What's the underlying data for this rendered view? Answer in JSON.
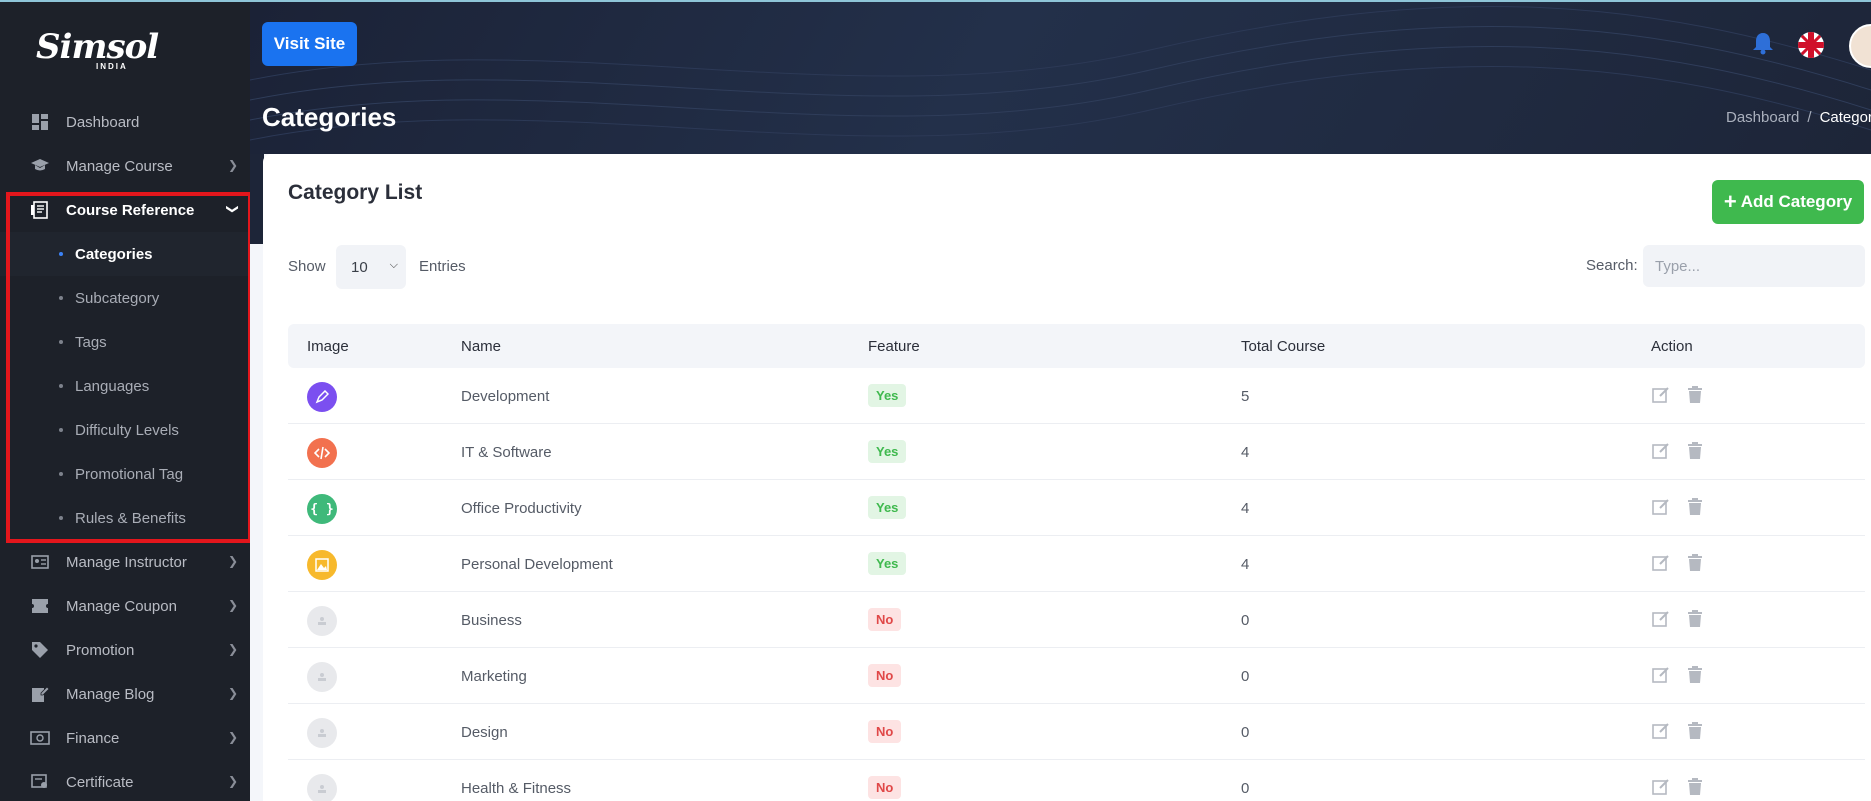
{
  "app": {
    "logo_text": "Simsol",
    "logo_sub": "INDIA"
  },
  "sidebar": {
    "items": [
      {
        "label": "Dashboard",
        "icon": "dashboard-icon"
      },
      {
        "label": "Manage Course",
        "icon": "graduation-cap-icon"
      },
      {
        "label": "Course Reference",
        "icon": "reference-icon"
      },
      {
        "label": "Manage Instructor",
        "icon": "id-card-icon"
      },
      {
        "label": "Manage Coupon",
        "icon": "coupon-icon"
      },
      {
        "label": "Promotion",
        "icon": "tag-icon"
      },
      {
        "label": "Manage Blog",
        "icon": "edit-note-icon"
      },
      {
        "label": "Finance",
        "icon": "money-icon"
      },
      {
        "label": "Certificate",
        "icon": "certificate-icon"
      }
    ],
    "submenu": [
      {
        "label": "Categories",
        "active": true
      },
      {
        "label": "Subcategory"
      },
      {
        "label": "Tags"
      },
      {
        "label": "Languages"
      },
      {
        "label": "Difficulty Levels"
      },
      {
        "label": "Promotional Tag"
      },
      {
        "label": "Rules & Benefits"
      }
    ],
    "highlight_color": "#e3161c"
  },
  "header": {
    "visit_site": "Visit Site",
    "page_title": "Categories",
    "breadcrumb": {
      "home": "Dashboard",
      "sep": "/",
      "current": "Categor"
    }
  },
  "card": {
    "title": "Category List",
    "add_label": "Add Category",
    "show_label": "Show",
    "entries_value": "10",
    "entries_label": "Entries",
    "search_label": "Search:",
    "search_placeholder": "Type..."
  },
  "table": {
    "columns": [
      "Image",
      "Name",
      "Feature",
      "Total Course",
      "Action"
    ],
    "rows": [
      {
        "name": "Development",
        "feature": "Yes",
        "total": "5",
        "icon_color": "#7b4ff0",
        "icon": "pen-icon"
      },
      {
        "name": "IT & Software",
        "feature": "Yes",
        "total": "4",
        "icon_color": "#f2714f",
        "icon": "code-icon"
      },
      {
        "name": "Office Productivity",
        "feature": "Yes",
        "total": "4",
        "icon_color": "#3fb97a",
        "icon": "braces-icon"
      },
      {
        "name": "Personal Development",
        "feature": "Yes",
        "total": "4",
        "icon_color": "#f7b92c",
        "icon": "image-icon"
      },
      {
        "name": "Business",
        "feature": "No",
        "total": "0",
        "icon_color": "#e8e9ec",
        "icon": "placeholder-icon"
      },
      {
        "name": "Marketing",
        "feature": "No",
        "total": "0",
        "icon_color": "#e8e9ec",
        "icon": "placeholder-icon"
      },
      {
        "name": "Design",
        "feature": "No",
        "total": "0",
        "icon_color": "#e8e9ec",
        "icon": "placeholder-icon"
      },
      {
        "name": "Health & Fitness",
        "feature": "No",
        "total": "0",
        "icon_color": "#e8e9ec",
        "icon": "placeholder-icon"
      }
    ]
  },
  "colors": {
    "primary": "#1a73f0",
    "success": "#3fb94e",
    "sidebar_bg": "#1d2129",
    "header_bg": "#1f2a40"
  }
}
